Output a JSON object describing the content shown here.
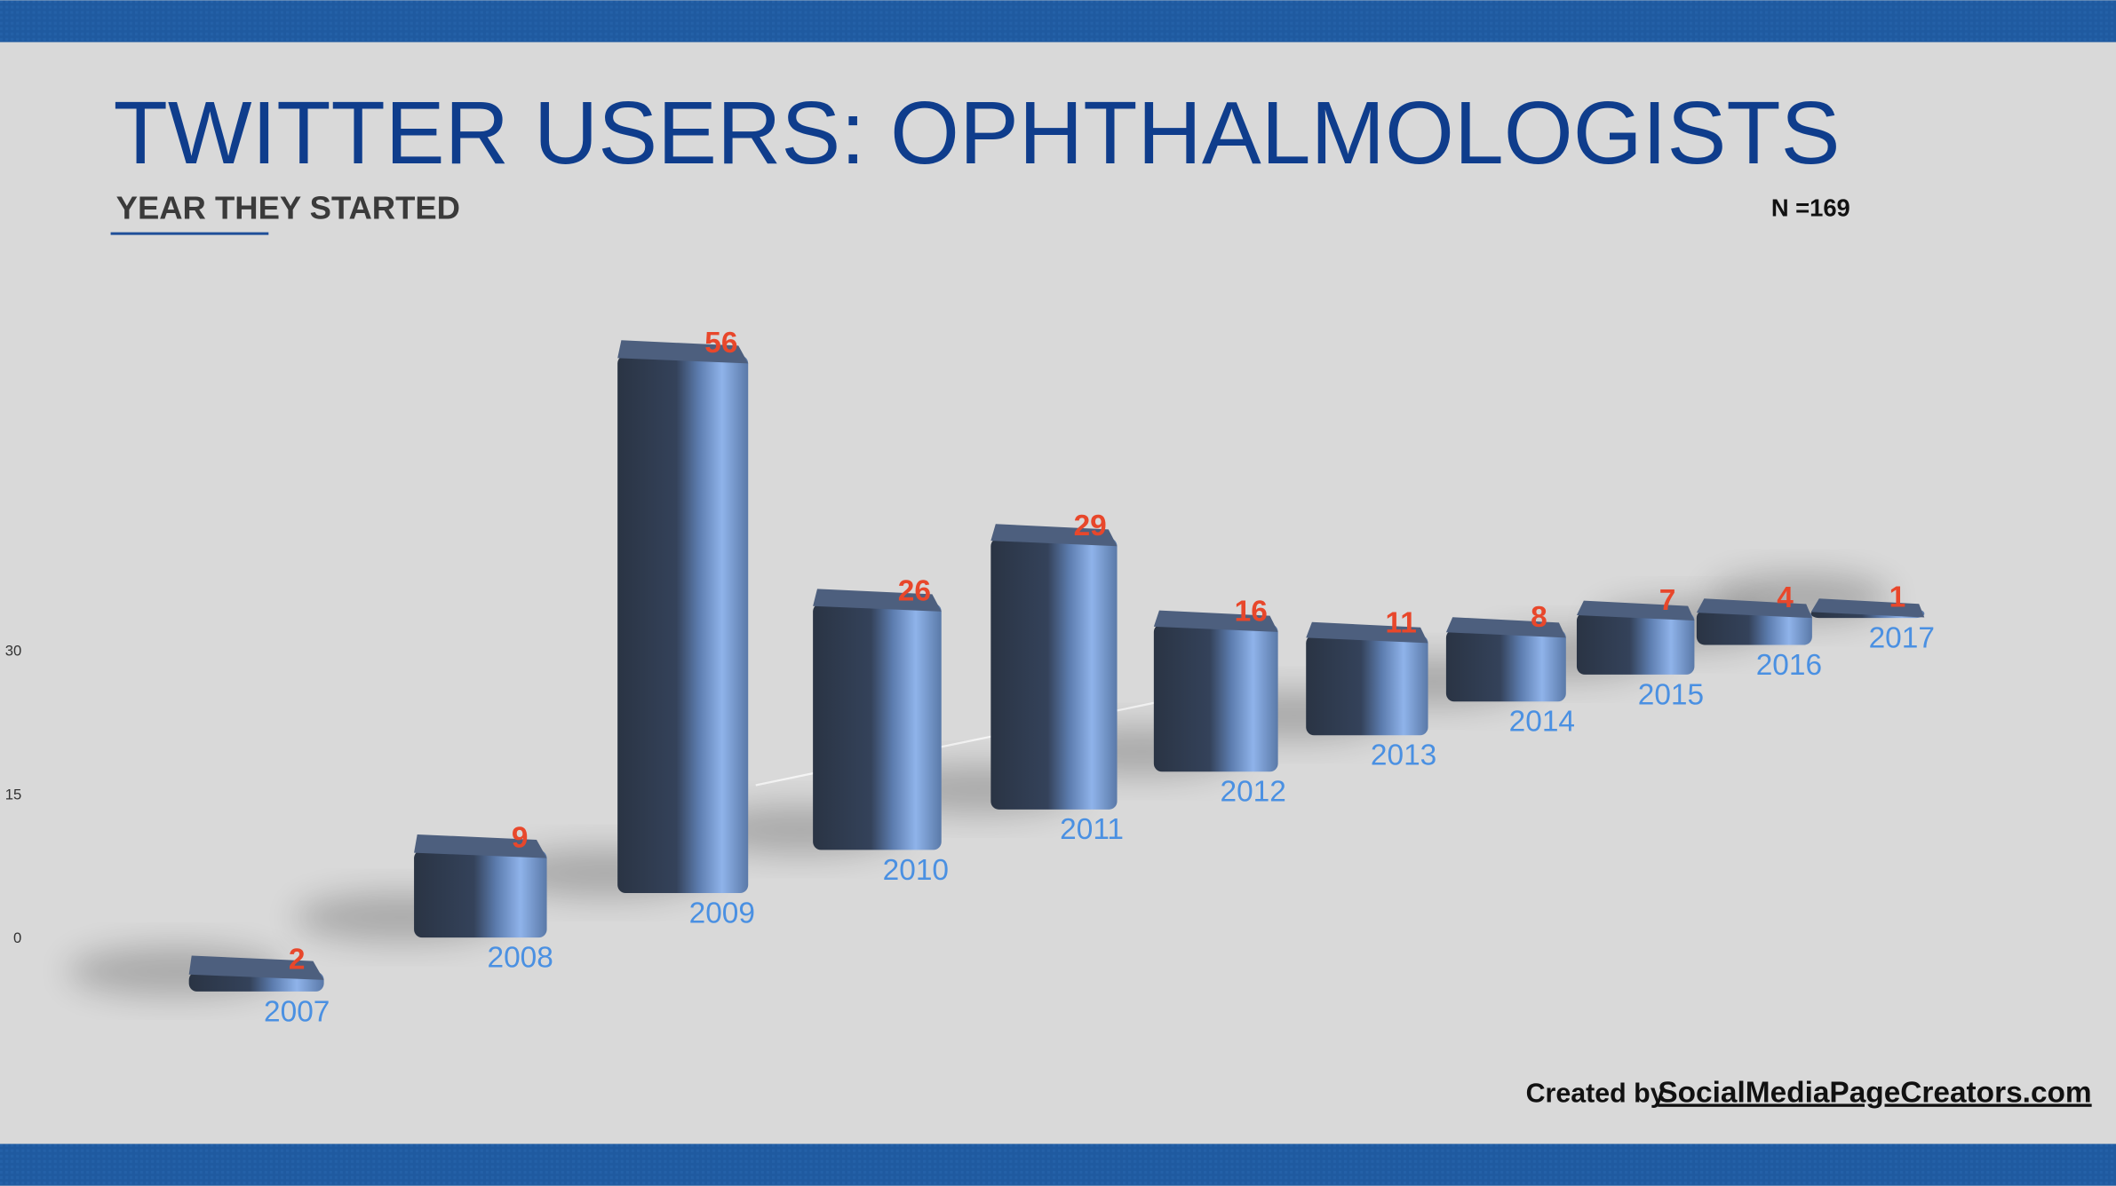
{
  "chart_data": {
    "type": "bar3d",
    "title": "TWITTER USERS: OPHTHALMOLOGISTS",
    "subtitle": "YEAR THEY STARTED",
    "annotation": "N =169",
    "credit_prefix": "Created by",
    "credit_link": "SocialMediaPageCreators.com",
    "categories": [
      "2007",
      "2008",
      "2009",
      "2010",
      "2011",
      "2012",
      "2013",
      "2014",
      "2015",
      "2016",
      "2017"
    ],
    "values": [
      2,
      9,
      56,
      26,
      29,
      16,
      11,
      8,
      7,
      4,
      1
    ],
    "color": "#7aa6e0",
    "label_color": "#e8472b",
    "category_color": "#4a90e2",
    "yticks": [
      0,
      15,
      30
    ]
  }
}
